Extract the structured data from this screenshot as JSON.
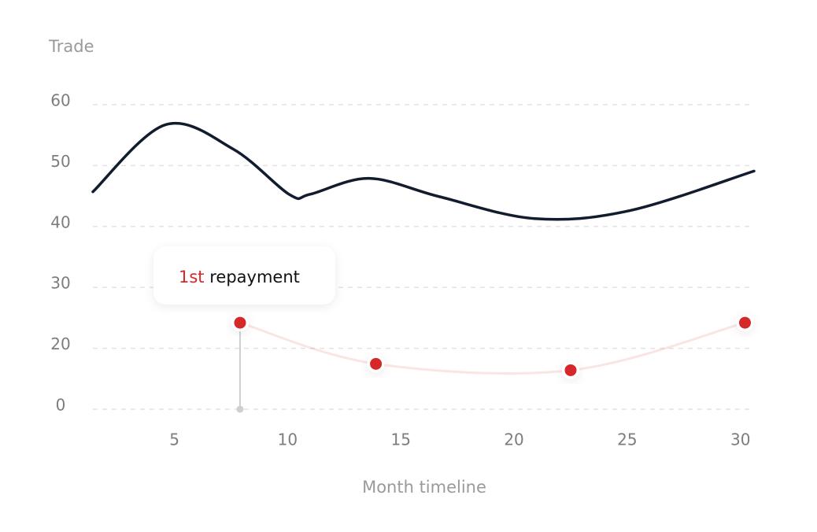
{
  "chart_data": {
    "type": "line",
    "y_label": "Trade",
    "x_label": "Month timeline",
    "xlim": [
      1.4,
      30.6
    ],
    "xticks": [
      5,
      10,
      15,
      20,
      25,
      30
    ],
    "ylim": [
      0,
      60
    ],
    "yticks": [
      0,
      20,
      30,
      40,
      50,
      60
    ],
    "grid": true,
    "series": [
      {
        "color": "#111c2e",
        "x": [
          1.4,
          4.6,
          7.6,
          10.1,
          11.0,
          13.6,
          16.7,
          20.9,
          25.1,
          30.6
        ],
        "values": [
          45.7,
          56.7,
          52.7,
          45.2,
          45.3,
          47.9,
          44.9,
          41.3,
          42.6,
          49.1
        ]
      },
      {
        "color": "#d62828",
        "x": [
          7.9,
          13.9,
          22.5,
          30.2
        ],
        "values": [
          24.2,
          14.9,
          12.8,
          24.2
        ]
      }
    ],
    "annotation": {
      "highlight": "1st",
      "text": "repayment"
    }
  }
}
